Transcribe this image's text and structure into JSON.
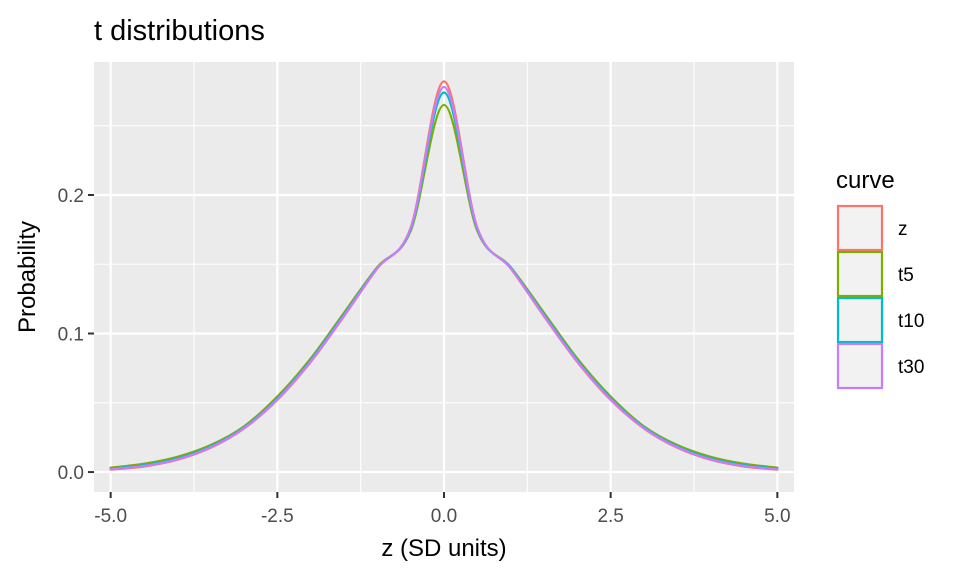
{
  "chart_data": {
    "type": "line",
    "title": "t distributions",
    "xlabel": "z (SD units)",
    "ylabel": "Probability",
    "xlim": [
      -5.25,
      5.25
    ],
    "ylim": [
      -0.0144,
      0.296
    ],
    "x_ticks": [
      -5.0,
      -2.5,
      0.0,
      2.5,
      5.0
    ],
    "x_tick_labels": [
      "-5.0",
      "-2.5",
      "0.0",
      "2.5",
      "5.0"
    ],
    "y_ticks": [
      0.0,
      0.1,
      0.2
    ],
    "y_tick_labels": [
      "0.0",
      "0.1",
      "0.2"
    ],
    "grid": true,
    "legend": {
      "title": "curve",
      "placement": "right"
    },
    "x": [
      -5.0,
      -4.5,
      -4.0,
      -3.5,
      -3.0,
      -2.5,
      -2.0,
      -1.5,
      -1.0,
      -0.5,
      0.0,
      0.5,
      1.0,
      1.5,
      2.0,
      2.5,
      3.0,
      3.5,
      4.0,
      4.5,
      5.0
    ],
    "series": [
      {
        "name": "z",
        "color": "#F8766D",
        "values": [
          0.0017,
          0.004,
          0.0088,
          0.0175,
          0.0314,
          0.052,
          0.0794,
          0.1124,
          0.147,
          0.1764,
          0.282,
          0.1764,
          0.147,
          0.1124,
          0.0794,
          0.052,
          0.0314,
          0.0175,
          0.0088,
          0.004,
          0.0017
        ]
      },
      {
        "name": "t5",
        "color": "#7CAE00",
        "values": [
          0.0032,
          0.006,
          0.011,
          0.0195,
          0.033,
          0.0545,
          0.082,
          0.115,
          0.148,
          0.174,
          0.265,
          0.174,
          0.148,
          0.115,
          0.082,
          0.0545,
          0.033,
          0.0195,
          0.011,
          0.006,
          0.0032
        ]
      },
      {
        "name": "t10",
        "color": "#00BFC4",
        "values": [
          0.0024,
          0.005,
          0.0098,
          0.0185,
          0.0322,
          0.0532,
          0.0807,
          0.1137,
          0.1475,
          0.1752,
          0.274,
          0.1752,
          0.1475,
          0.1137,
          0.0807,
          0.0532,
          0.0322,
          0.0185,
          0.0098,
          0.005,
          0.0024
        ]
      },
      {
        "name": "t30",
        "color": "#C77CFF",
        "values": [
          0.002,
          0.0044,
          0.0092,
          0.0179,
          0.0317,
          0.0525,
          0.0799,
          0.1129,
          0.1472,
          0.1759,
          0.278,
          0.1759,
          0.1472,
          0.1129,
          0.0799,
          0.0525,
          0.0317,
          0.0179,
          0.0092,
          0.0044,
          0.002
        ]
      }
    ]
  }
}
